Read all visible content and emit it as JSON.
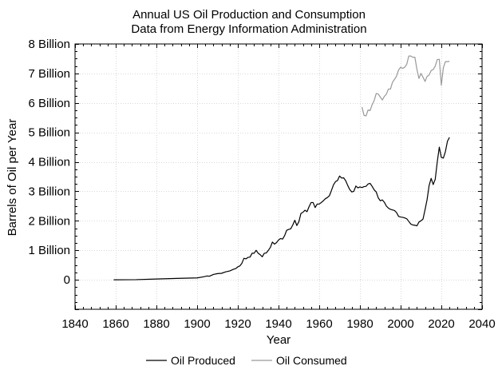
{
  "chart_data": {
    "type": "line",
    "title": "Annual US Oil Production and Consumption",
    "subtitle": "Data from Energy Information Administration",
    "xlabel": "Year",
    "ylabel": "Barrels of Oil per Year",
    "xlim": [
      1840,
      2040
    ],
    "ylim": [
      -1,
      8
    ],
    "x_ticks": [
      1840,
      1860,
      1880,
      1900,
      1920,
      1940,
      1960,
      1980,
      2000,
      2020,
      2040
    ],
    "y_ticks": [
      0,
      1,
      2,
      3,
      4,
      5,
      6,
      7,
      8
    ],
    "y_tick_labels": [
      "0",
      "1 Billion",
      "2 Billion",
      "3 Billion",
      "4 Billion",
      "5 Billion",
      "6 Billion",
      "7 Billion",
      "8 Billion"
    ],
    "grid": true,
    "legend_position": "bottom",
    "series": [
      {
        "name": "Oil Produced",
        "color": "#000000",
        "points": [
          [
            1859,
            0.0
          ],
          [
            1870,
            0.005
          ],
          [
            1880,
            0.026
          ],
          [
            1890,
            0.046
          ],
          [
            1900,
            0.064
          ],
          [
            1903,
            0.1
          ],
          [
            1905,
            0.13
          ],
          [
            1906,
            0.12
          ],
          [
            1908,
            0.18
          ],
          [
            1910,
            0.21
          ],
          [
            1912,
            0.22
          ],
          [
            1914,
            0.27
          ],
          [
            1916,
            0.3
          ],
          [
            1918,
            0.36
          ],
          [
            1919,
            0.38
          ],
          [
            1920,
            0.44
          ],
          [
            1921,
            0.47
          ],
          [
            1922,
            0.56
          ],
          [
            1923,
            0.73
          ],
          [
            1924,
            0.71
          ],
          [
            1925,
            0.76
          ],
          [
            1926,
            0.77
          ],
          [
            1927,
            0.9
          ],
          [
            1928,
            0.9
          ],
          [
            1929,
            1.0
          ],
          [
            1930,
            0.9
          ],
          [
            1931,
            0.85
          ],
          [
            1932,
            0.78
          ],
          [
            1933,
            0.9
          ],
          [
            1934,
            0.91
          ],
          [
            1935,
            1.0
          ],
          [
            1936,
            1.1
          ],
          [
            1937,
            1.28
          ],
          [
            1938,
            1.21
          ],
          [
            1939,
            1.26
          ],
          [
            1940,
            1.35
          ],
          [
            1941,
            1.4
          ],
          [
            1942,
            1.38
          ],
          [
            1943,
            1.5
          ],
          [
            1944,
            1.68
          ],
          [
            1945,
            1.71
          ],
          [
            1946,
            1.73
          ],
          [
            1947,
            1.86
          ],
          [
            1948,
            2.02
          ],
          [
            1949,
            1.84
          ],
          [
            1950,
            1.97
          ],
          [
            1951,
            2.25
          ],
          [
            1952,
            2.29
          ],
          [
            1953,
            2.36
          ],
          [
            1954,
            2.31
          ],
          [
            1955,
            2.48
          ],
          [
            1956,
            2.62
          ],
          [
            1957,
            2.62
          ],
          [
            1958,
            2.45
          ],
          [
            1959,
            2.57
          ],
          [
            1960,
            2.57
          ],
          [
            1961,
            2.62
          ],
          [
            1962,
            2.68
          ],
          [
            1963,
            2.75
          ],
          [
            1964,
            2.79
          ],
          [
            1965,
            2.85
          ],
          [
            1966,
            3.03
          ],
          [
            1967,
            3.22
          ],
          [
            1968,
            3.33
          ],
          [
            1969,
            3.37
          ],
          [
            1970,
            3.52
          ],
          [
            1971,
            3.45
          ],
          [
            1972,
            3.46
          ],
          [
            1973,
            3.36
          ],
          [
            1974,
            3.2
          ],
          [
            1975,
            3.06
          ],
          [
            1976,
            2.98
          ],
          [
            1977,
            3.0
          ],
          [
            1978,
            3.18
          ],
          [
            1979,
            3.12
          ],
          [
            1980,
            3.15
          ],
          [
            1981,
            3.13
          ],
          [
            1982,
            3.16
          ],
          [
            1983,
            3.17
          ],
          [
            1984,
            3.25
          ],
          [
            1985,
            3.27
          ],
          [
            1986,
            3.17
          ],
          [
            1987,
            3.05
          ],
          [
            1988,
            2.98
          ],
          [
            1989,
            2.78
          ],
          [
            1990,
            2.68
          ],
          [
            1991,
            2.71
          ],
          [
            1992,
            2.63
          ],
          [
            1993,
            2.5
          ],
          [
            1994,
            2.43
          ],
          [
            1995,
            2.39
          ],
          [
            1996,
            2.37
          ],
          [
            1997,
            2.35
          ],
          [
            1998,
            2.28
          ],
          [
            1999,
            2.15
          ],
          [
            2000,
            2.13
          ],
          [
            2001,
            2.12
          ],
          [
            2002,
            2.1
          ],
          [
            2003,
            2.07
          ],
          [
            2004,
            1.98
          ],
          [
            2005,
            1.89
          ],
          [
            2006,
            1.86
          ],
          [
            2007,
            1.85
          ],
          [
            2008,
            1.83
          ],
          [
            2009,
            1.96
          ],
          [
            2010,
            2.0
          ],
          [
            2011,
            2.06
          ],
          [
            2012,
            2.38
          ],
          [
            2013,
            2.72
          ],
          [
            2014,
            3.2
          ],
          [
            2015,
            3.44
          ],
          [
            2016,
            3.23
          ],
          [
            2017,
            3.41
          ],
          [
            2018,
            4.0
          ],
          [
            2019,
            4.5
          ],
          [
            2020,
            4.15
          ],
          [
            2021,
            4.13
          ],
          [
            2022,
            4.35
          ],
          [
            2023,
            4.7
          ],
          [
            2024,
            4.83
          ]
        ]
      },
      {
        "name": "Oil Consumed",
        "color": "#999999",
        "points": [
          [
            1981,
            5.86
          ],
          [
            1982,
            5.58
          ],
          [
            1983,
            5.56
          ],
          [
            1984,
            5.76
          ],
          [
            1985,
            5.74
          ],
          [
            1986,
            5.94
          ],
          [
            1987,
            6.08
          ],
          [
            1988,
            6.32
          ],
          [
            1989,
            6.3
          ],
          [
            1990,
            6.2
          ],
          [
            1991,
            6.1
          ],
          [
            1992,
            6.22
          ],
          [
            1993,
            6.3
          ],
          [
            1994,
            6.47
          ],
          [
            1995,
            6.47
          ],
          [
            1996,
            6.7
          ],
          [
            1997,
            6.8
          ],
          [
            1998,
            6.91
          ],
          [
            1999,
            7.12
          ],
          [
            2000,
            7.21
          ],
          [
            2001,
            7.17
          ],
          [
            2002,
            7.21
          ],
          [
            2003,
            7.31
          ],
          [
            2004,
            7.59
          ],
          [
            2005,
            7.59
          ],
          [
            2006,
            7.55
          ],
          [
            2007,
            7.55
          ],
          [
            2008,
            7.14
          ],
          [
            2009,
            6.83
          ],
          [
            2010,
            7.0
          ],
          [
            2011,
            6.87
          ],
          [
            2012,
            6.73
          ],
          [
            2013,
            6.9
          ],
          [
            2014,
            6.95
          ],
          [
            2015,
            7.1
          ],
          [
            2016,
            7.13
          ],
          [
            2017,
            7.25
          ],
          [
            2018,
            7.47
          ],
          [
            2019,
            7.48
          ],
          [
            2020,
            6.6
          ],
          [
            2021,
            7.2
          ],
          [
            2022,
            7.4
          ],
          [
            2023,
            7.4
          ],
          [
            2024,
            7.41
          ]
        ]
      }
    ]
  }
}
